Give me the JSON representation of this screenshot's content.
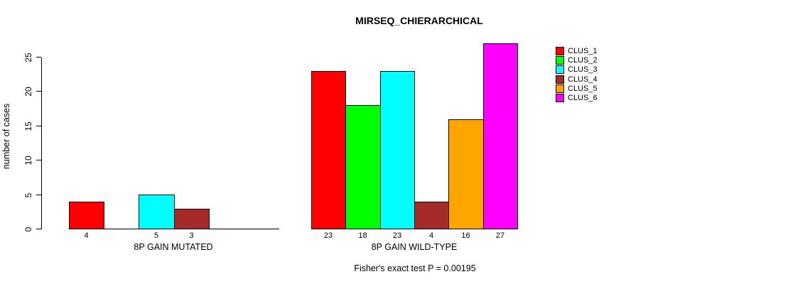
{
  "chart_data": {
    "type": "bar",
    "title": "MIRSEQ_CHIERARCHICAL",
    "ylabel": "number of cases",
    "yticks": [
      0,
      5,
      10,
      15,
      20,
      25
    ],
    "ylim": [
      0,
      27
    ],
    "grid": false,
    "legend_position": "right-outside",
    "categories": [
      "8P GAIN MUTATED",
      "8P GAIN WILD-TYPE"
    ],
    "series": [
      {
        "name": "CLUS_1",
        "color": "#FF0000",
        "values": [
          4,
          23
        ]
      },
      {
        "name": "CLUS_2",
        "color": "#00FF00",
        "values": [
          0,
          18
        ]
      },
      {
        "name": "CLUS_3",
        "color": "#00FFFF",
        "values": [
          5,
          23
        ]
      },
      {
        "name": "CLUS_4",
        "color": "#A52A2A",
        "values": [
          3,
          4
        ]
      },
      {
        "name": "CLUS_5",
        "color": "#FFA500",
        "values": [
          0,
          16
        ]
      },
      {
        "name": "CLUS_6",
        "color": "#FF00FF",
        "values": [
          0,
          27
        ]
      }
    ],
    "bar_value_labels": [
      [
        "4",
        "",
        "5",
        "3",
        "",
        ""
      ],
      [
        "23",
        "18",
        "23",
        "4",
        "16",
        "27"
      ]
    ],
    "annotation": "Fisher's exact test P = 0.00195",
    "axis_color": "#000000"
  }
}
